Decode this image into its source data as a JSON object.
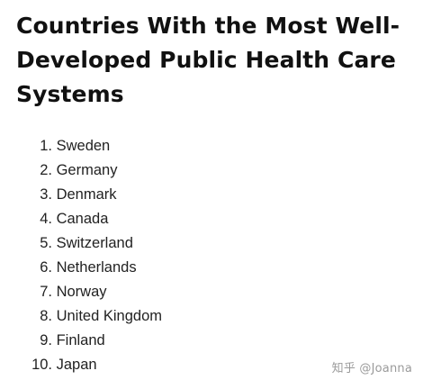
{
  "title": "Countries With the Most Well-Developed Public Health Care Systems",
  "list": [
    {
      "num": "1.",
      "text": "Sweden"
    },
    {
      "num": "2.",
      "text": "Germany"
    },
    {
      "num": "3.",
      "text": "Denmark"
    },
    {
      "num": "4.",
      "text": "Canada"
    },
    {
      "num": "5.",
      "text": "Switzerland"
    },
    {
      "num": "6.",
      "text": "Netherlands"
    },
    {
      "num": "7.",
      "text": "Norway"
    },
    {
      "num": "8.",
      "text": "United Kingdom"
    },
    {
      "num": "9.",
      "text": "Finland"
    },
    {
      "num": "10.",
      "text": "Japan"
    }
  ],
  "watermark": "知乎 @Joanna"
}
